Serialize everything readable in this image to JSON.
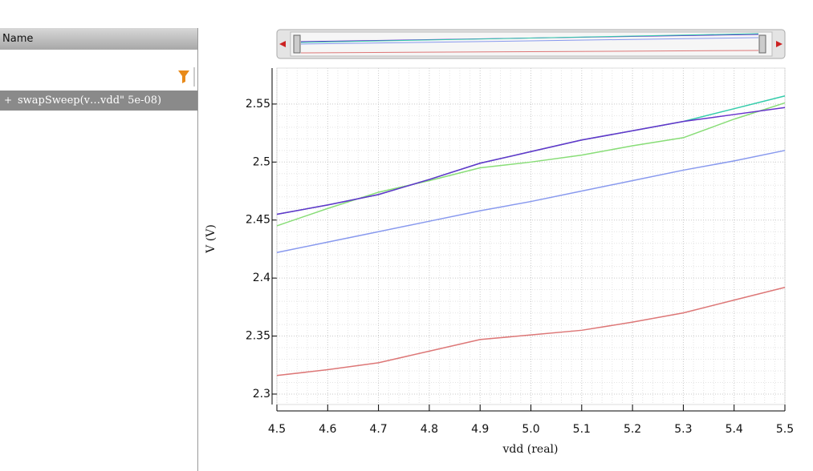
{
  "panel": {
    "header": "Name",
    "tree_item": "swapSweep(v…vdd\" 5e-08)"
  },
  "chart_data": {
    "type": "line",
    "x_label": "vdd (real)",
    "y_label": "V (V)",
    "x": [
      4.5,
      4.6,
      4.7,
      4.8,
      4.9,
      5.0,
      5.1,
      5.2,
      5.3,
      5.4,
      5.5
    ],
    "series": [
      {
        "color": "#8899ee",
        "values": [
          2.422,
          2.431,
          2.44,
          2.449,
          2.458,
          2.466,
          2.475,
          2.484,
          2.493,
          2.501,
          2.51
        ]
      },
      {
        "color": "#dd7777",
        "values": [
          2.316,
          2.321,
          2.327,
          2.337,
          2.347,
          2.351,
          2.355,
          2.362,
          2.37,
          2.381,
          2.392
        ]
      },
      {
        "color": "#88dd77",
        "values": [
          2.445,
          2.46,
          2.474,
          2.484,
          2.495,
          2.5,
          2.506,
          2.514,
          2.521,
          2.537,
          2.551
        ]
      },
      {
        "color": "#33ccaa",
        "values": [
          2.455,
          2.463,
          2.472,
          2.485,
          2.499,
          2.509,
          2.519,
          2.527,
          2.535,
          2.546,
          2.557
        ]
      },
      {
        "color": "#6633cc",
        "values": [
          2.455,
          2.463,
          2.472,
          2.485,
          2.499,
          2.509,
          2.519,
          2.527,
          2.535,
          2.541,
          2.547
        ]
      }
    ],
    "xlim": [
      4.5,
      5.5
    ],
    "ylim": [
      2.291,
      2.581
    ],
    "xticks": [
      4.5,
      4.6,
      4.7,
      4.8,
      4.9,
      {
        "value": 5,
        "label": "5.0"
      },
      5.1,
      5.2,
      5.3,
      5.4,
      5.5
    ],
    "yticks": [
      2.3,
      2.35,
      2.4,
      2.45,
      2.5,
      2.55
    ],
    "grid": true
  }
}
